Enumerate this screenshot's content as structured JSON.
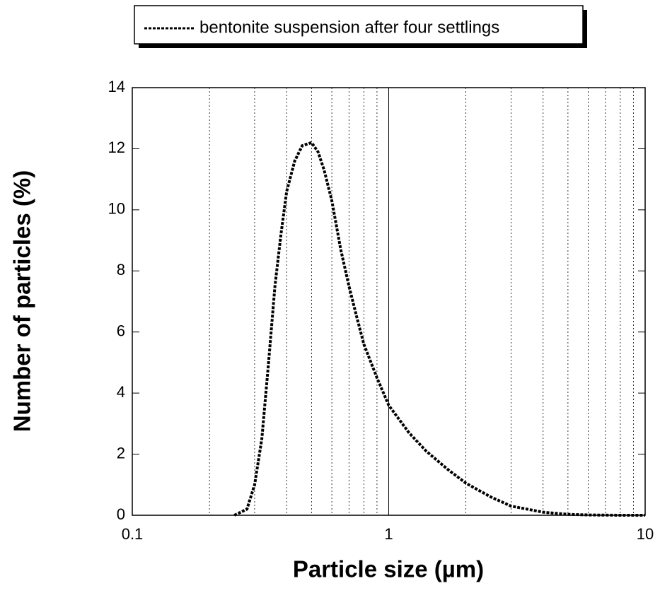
{
  "chart_data": {
    "type": "line",
    "xlabel": "Particle size (µm)",
    "ylabel": "Number of particles (%)",
    "xscale": "log",
    "grid": true,
    "legend": "top",
    "xlim": [
      0.1,
      10
    ],
    "xticks": [
      0.1,
      1,
      10
    ],
    "ylim": [
      0,
      14
    ],
    "yticks": [
      0,
      2,
      4,
      6,
      8,
      10,
      12,
      14
    ],
    "series": [
      {
        "name": "bentonite suspension after four settlings",
        "color": "#000000",
        "x": [
          0.25,
          0.28,
          0.3,
          0.32,
          0.34,
          0.36,
          0.38,
          0.4,
          0.43,
          0.46,
          0.5,
          0.53,
          0.56,
          0.6,
          0.65,
          0.7,
          0.75,
          0.8,
          0.9,
          1.0,
          1.2,
          1.4,
          1.7,
          2.0,
          2.5,
          3,
          4,
          5,
          6,
          8,
          10
        ],
        "values": [
          0,
          0.2,
          1,
          2.5,
          5,
          7.5,
          9.2,
          10.6,
          11.6,
          12.1,
          12.2,
          11.9,
          11.3,
          10.3,
          8.7,
          7.5,
          6.5,
          5.6,
          4.5,
          3.6,
          2.7,
          2.1,
          1.5,
          1.05,
          0.6,
          0.3,
          0.1,
          0.03,
          0.01,
          0,
          0
        ]
      }
    ]
  }
}
